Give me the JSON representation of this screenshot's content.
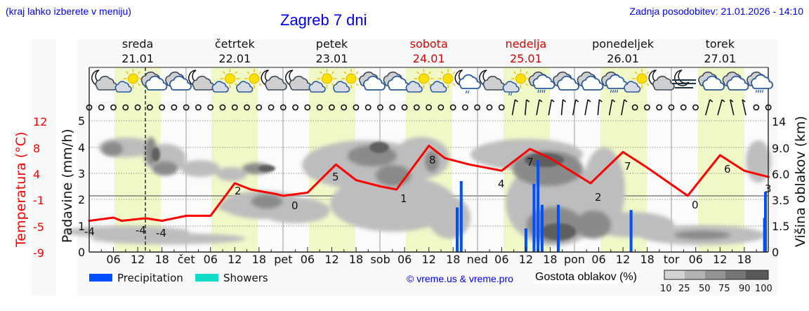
{
  "header": {
    "region_hint": "(kraj lahko izberete v meniju)",
    "title": "Zagreb 7 dni",
    "last_update": "Zadnja posodobitev: 21.01.2026 - 14:10"
  },
  "days": [
    {
      "name": "sreda",
      "date": "21.01",
      "weekend": false,
      "short": ""
    },
    {
      "name": "četrtek",
      "date": "22.01",
      "weekend": false,
      "short": "čet"
    },
    {
      "name": "petek",
      "date": "23.01",
      "weekend": false,
      "short": "pet"
    },
    {
      "name": "sobota",
      "date": "24.01",
      "weekend": true,
      "short": "sob"
    },
    {
      "name": "nedelja",
      "date": "25.01",
      "weekend": true,
      "short": "ned"
    },
    {
      "name": "ponedeljek",
      "date": "26.01",
      "weekend": false,
      "short": "pon"
    },
    {
      "name": "torek",
      "date": "27.01",
      "weekend": false,
      "short": "tor"
    }
  ],
  "legend": {
    "precipitation_label": "Precipitation",
    "showers_label": "Showers",
    "copyright": "© vreme.us & vreme.pro",
    "cloud_density_label": "Gostota oblakov (%)",
    "cloud_density_ticks": [
      "10",
      "25",
      "50",
      "75",
      "90",
      "100"
    ],
    "cloud_density_colors": [
      "#d3d3d3",
      "#b3b3b3",
      "#949494",
      "#767676",
      "#595959"
    ]
  },
  "colors": {
    "precipitation": "#0050ff",
    "showers": "#10dcc8",
    "temperature": "#ff0000",
    "weekend_text": "#dd0000",
    "daylight_band": "#f0f8c8",
    "link": "#0000ee"
  },
  "chart_data": {
    "type": "line",
    "title": "Zagreb 7 dni",
    "xlabel": "",
    "hour_ticks": [
      "06",
      "12",
      "18"
    ],
    "day_labels": [
      "sreda 21.01",
      "četrtek 22.01",
      "petek 23.01",
      "sobota 24.01",
      "nedelja 25.01",
      "ponedeljek 26.01",
      "torek 27.01"
    ],
    "left_axis_temperature": {
      "label": "Temperatura (°C)",
      "ticks": [
        12,
        8,
        4,
        -1,
        -5,
        -9
      ]
    },
    "left_axis_precipitation": {
      "label": "Padavine (mm/h)",
      "ticks": [
        0,
        1,
        2,
        3,
        4,
        5
      ],
      "ylim": [
        0,
        5
      ]
    },
    "right_axis_cloud_height": {
      "label": "Višina oblakov (km)",
      "ticks": [
        0,
        1.5,
        3.5,
        6.0,
        9.0,
        14
      ]
    },
    "now_marker": "21.01 14:10",
    "series": [
      {
        "name": "Temperature (°C)",
        "x": [
          "21.01 00",
          "21.01 06",
          "21.01 08",
          "21.01 14",
          "21.01 18",
          "22.01 00",
          "22.01 06",
          "22.01 12",
          "22.01 16",
          "22.01 22",
          "23.01 00",
          "23.01 06",
          "23.01 13",
          "23.01 18",
          "24.01 00",
          "24.01 04",
          "24.01 12",
          "24.01 16",
          "24.01 22",
          "25.01 06",
          "25.01 13",
          "25.01 18",
          "26.01 04",
          "26.01 12",
          "26.01 18",
          "27.01 04",
          "27.01 12",
          "27.01 18",
          "27.01 24"
        ],
        "values": [
          -4,
          -3.5,
          -4,
          -3.6,
          -4,
          -3.2,
          -3.2,
          2,
          1,
          0.3,
          0,
          0.5,
          5,
          2.5,
          1.5,
          1,
          8,
          6,
          5,
          4,
          7.5,
          6,
          2,
          7,
          4.5,
          0,
          6.5,
          4,
          3
        ]
      },
      {
        "name": "Temperature labels (extrema)",
        "values": [
          -4,
          -4,
          -4,
          2,
          0,
          5,
          1,
          8,
          4,
          7,
          2,
          7,
          0,
          6,
          3
        ]
      },
      {
        "name": "Precipitation (mm/h)",
        "x": [
          "24.01 19",
          "24.01 20",
          "25.01 12",
          "25.01 14",
          "25.01 15",
          "25.01 16",
          "25.01 20",
          "26.01 14",
          "27.01 23",
          "27.01 24"
        ],
        "values": [
          1.7,
          2.7,
          0.9,
          2.6,
          3.5,
          1.8,
          1.8,
          1.6,
          1.3,
          2.3
        ]
      },
      {
        "name": "Showers (mm/h)",
        "values": []
      }
    ],
    "cloud_density_legend": {
      "label": "Gostota oblakov (%)",
      "levels": [
        10,
        25,
        50,
        75,
        90,
        100
      ]
    },
    "weather_icons": [
      "night-cloudy",
      "sun-cloud",
      "cloud",
      "cloud",
      "night-cloudy",
      "sun-cloud",
      "sun-cloud",
      "night-cloudy",
      "night-cloudy",
      "sun-cloud",
      "sun-cloud",
      "cloud",
      "cloud",
      "sun-cloud",
      "sun-cloud",
      "night-rain",
      "night-cloudy",
      "sun-cloud-rain",
      "cloud-rain",
      "cloud",
      "cloud",
      "cloud-rain",
      "sun-cloud",
      "night-cloudy",
      "night-fog",
      "cloud",
      "cloud",
      "cloud-rain"
    ],
    "grid": true
  }
}
